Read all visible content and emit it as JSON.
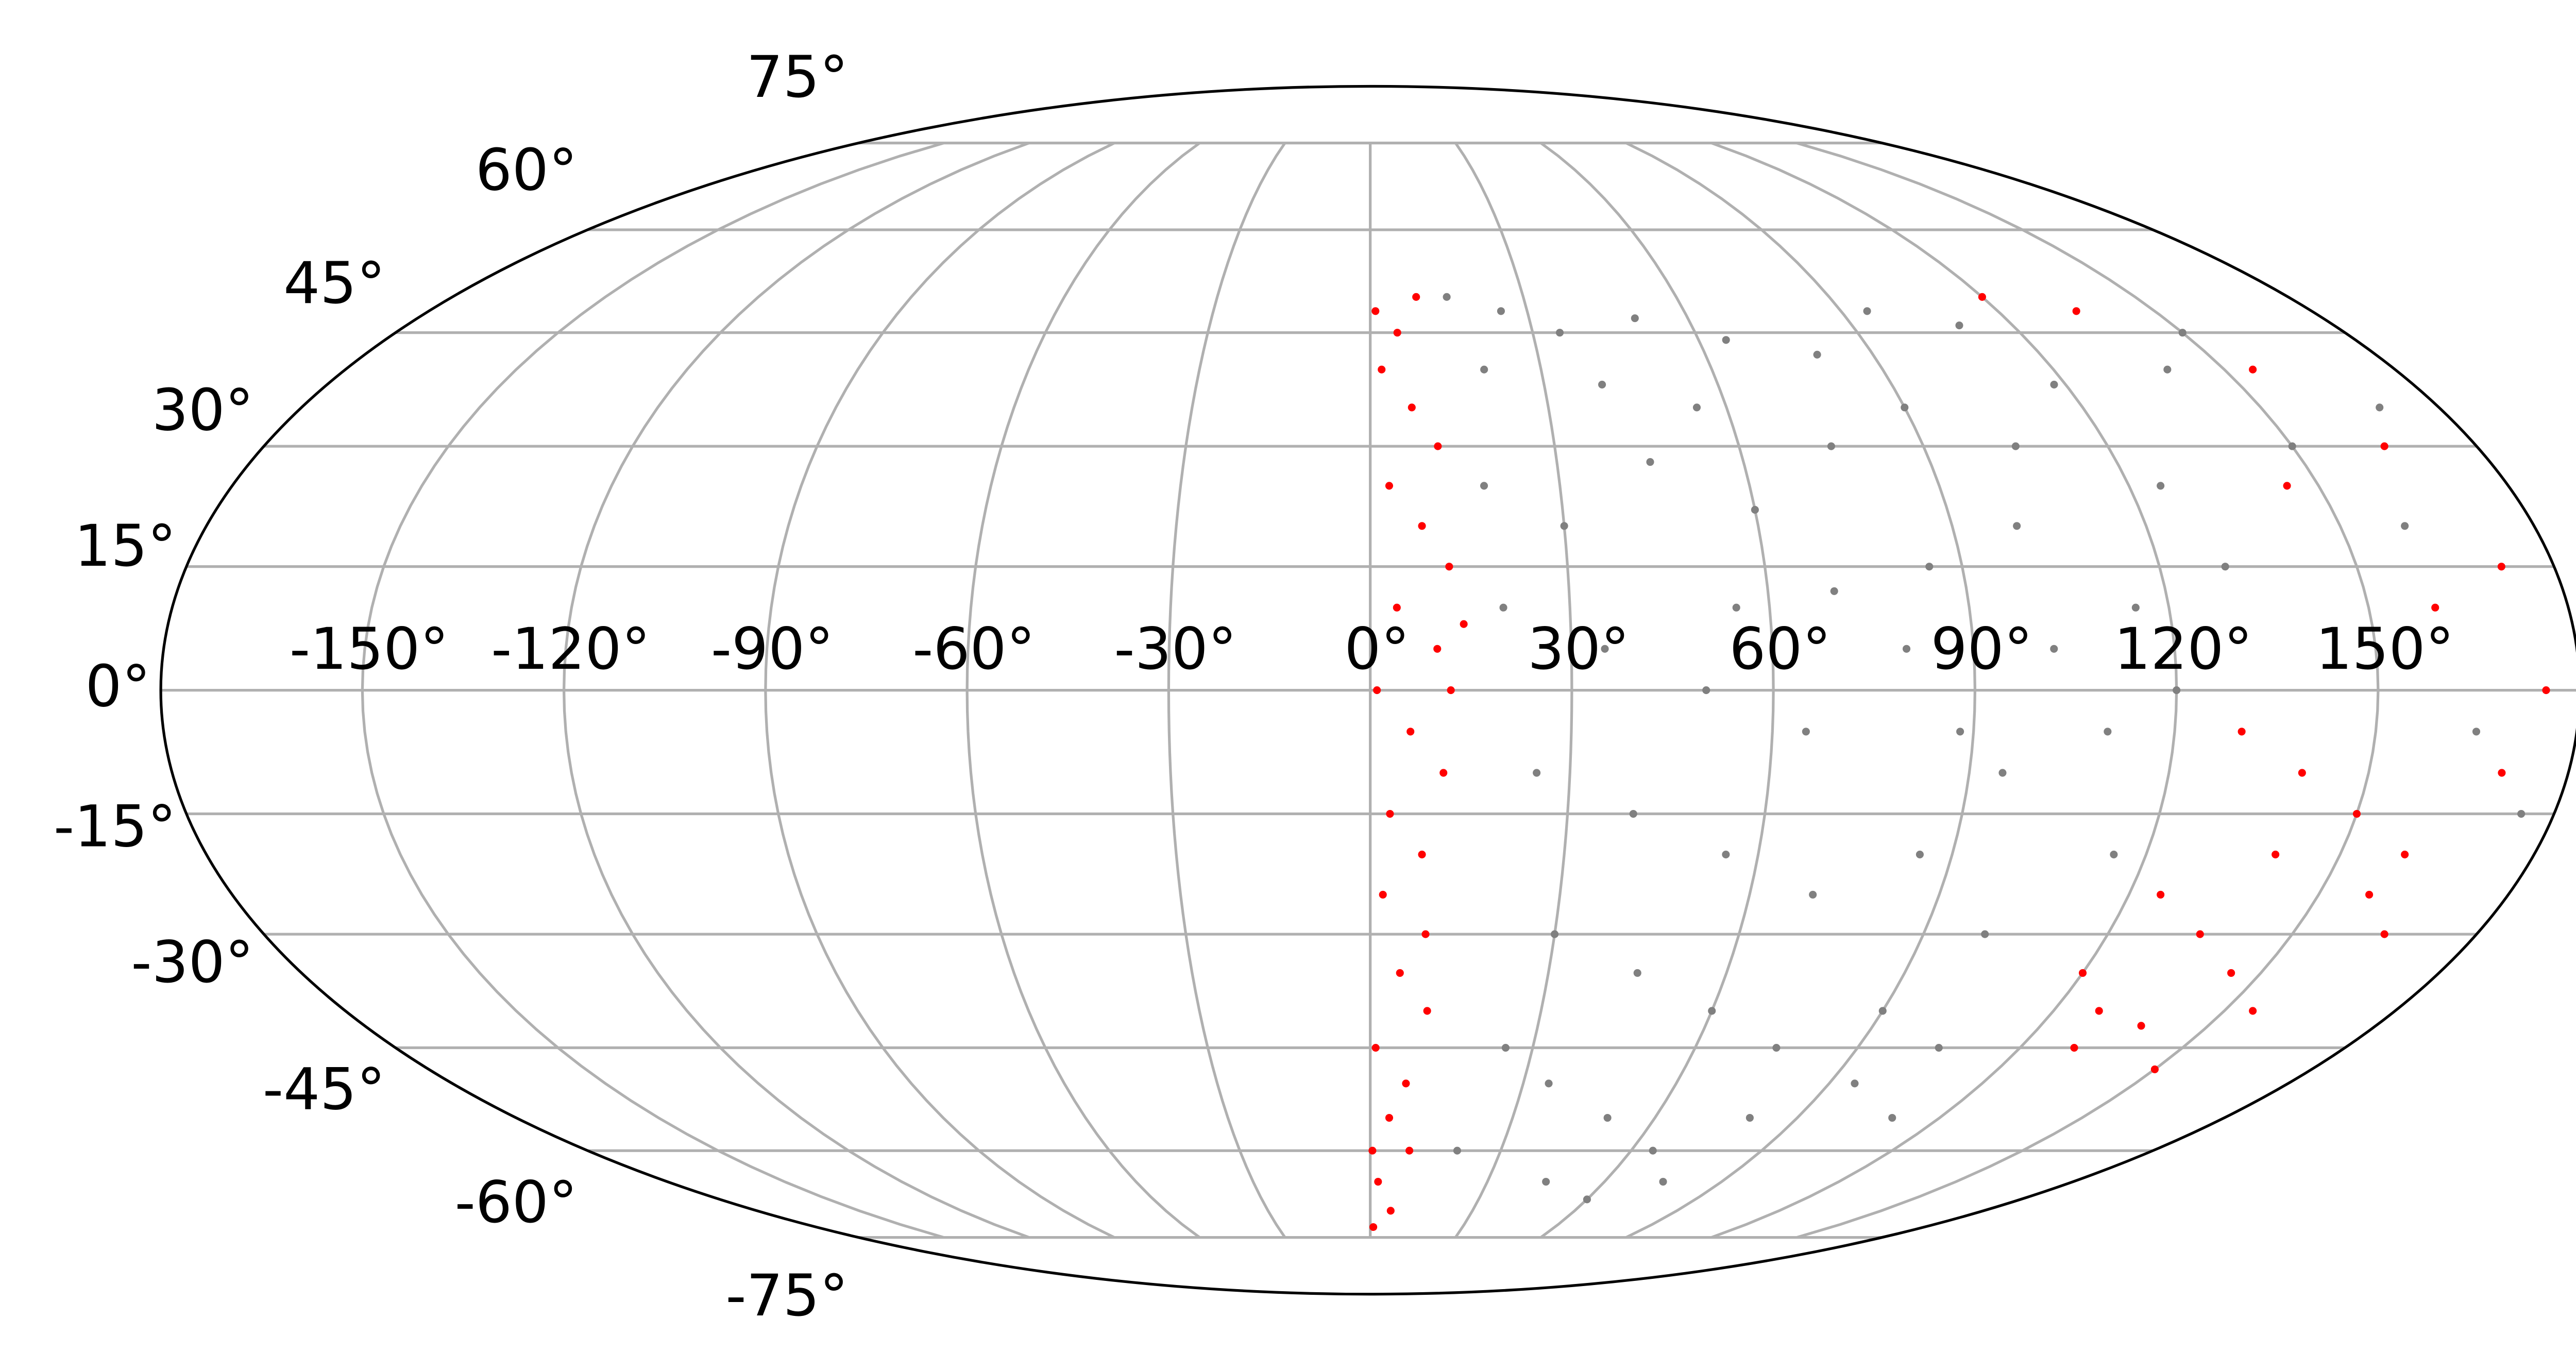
{
  "chart_data": {
    "type": "scatter",
    "projection": "mollweide",
    "grid": true,
    "xlim": [
      -180,
      180
    ],
    "ylim": [
      -90,
      90
    ],
    "xticks": [
      {
        "value": -150,
        "label": "-150°"
      },
      {
        "value": -120,
        "label": "-120°"
      },
      {
        "value": -90,
        "label": "-90°"
      },
      {
        "value": -60,
        "label": "-60°"
      },
      {
        "value": -30,
        "label": "-30°"
      },
      {
        "value": 0,
        "label": "0°"
      },
      {
        "value": 30,
        "label": "30°"
      },
      {
        "value": 60,
        "label": "60°"
      },
      {
        "value": 90,
        "label": "90°"
      },
      {
        "value": 120,
        "label": "120°"
      },
      {
        "value": 150,
        "label": "150°"
      }
    ],
    "yticks": [
      {
        "value": -75,
        "label": "-75°"
      },
      {
        "value": -60,
        "label": "-60°"
      },
      {
        "value": -45,
        "label": "-45°"
      },
      {
        "value": -30,
        "label": "-30°"
      },
      {
        "value": -15,
        "label": "-15°"
      },
      {
        "value": 0,
        "label": "0°"
      },
      {
        "value": 15,
        "label": "15°"
      },
      {
        "value": 30,
        "label": "30°"
      },
      {
        "value": 45,
        "label": "45°"
      },
      {
        "value": 60,
        "label": "60°"
      },
      {
        "value": 75,
        "label": "75°"
      }
    ],
    "series": [
      {
        "color": "#808080",
        "x": [
          15,
          25,
          35,
          50,
          65,
          80,
          95,
          110,
          20,
          40,
          55,
          75,
          90,
          105,
          118,
          18,
          30,
          45,
          60,
          85,
          100,
          115,
          125,
          20,
          35,
          50,
          65,
          80,
          95,
          110,
          120,
          25,
          40,
          55,
          70,
          85,
          100,
          115,
          30,
          45,
          60,
          75,
          90,
          105,
          35,
          50,
          65,
          80,
          95,
          45,
          60,
          75,
          140,
          150,
          160,
          170,
          165,
          175,
          130,
          150,
          25,
          20,
          110,
          55,
          70,
          88,
          102
        ],
        "values": [
          50,
          48,
          45,
          47,
          44,
          42,
          48,
          46,
          40,
          38,
          35,
          30,
          35,
          30,
          38,
          25,
          20,
          28,
          22,
          15,
          20,
          10,
          25,
          10,
          5,
          0,
          -5,
          5,
          -10,
          -5,
          0,
          -10,
          -15,
          -20,
          -25,
          -20,
          -30,
          -20,
          -30,
          -35,
          -40,
          -45,
          -40,
          -45,
          -50,
          -55,
          -60,
          -55,
          -50,
          -65,
          -68,
          -65,
          40,
          30,
          20,
          35,
          -5,
          -15,
          15,
          45,
          -45,
          -60,
          -55,
          10,
          12,
          -5,
          5
        ]
      },
      {
        "color": "#ff0000",
        "x": [
          1,
          5,
          9,
          2,
          7,
          11,
          3,
          8,
          12,
          4,
          10,
          1,
          6,
          11,
          3,
          8,
          2,
          9,
          5,
          10,
          1,
          7,
          4,
          9,
          2,
          6,
          1,
          12,
          14,
          0.5,
          130,
          140,
          150,
          160,
          125,
          135,
          145,
          155,
          165,
          170,
          120,
          130,
          150,
          140,
          175,
          172,
          165,
          155,
          135,
          120,
          145,
          160,
          128,
          138,
          158
        ],
        "values": [
          48,
          45,
          50,
          40,
          35,
          30,
          25,
          20,
          15,
          10,
          5,
          0,
          -5,
          -10,
          -15,
          -20,
          -25,
          -30,
          -35,
          -40,
          -45,
          -50,
          -55,
          -60,
          -65,
          -70,
          -73,
          0,
          8,
          -60,
          -5,
          -10,
          -15,
          -20,
          -25,
          -30,
          -35,
          -40,
          -30,
          -10,
          -35,
          -45,
          -48,
          -20,
          0,
          15,
          30,
          40,
          48,
          50,
          25,
          10,
          -40,
          -42,
          -25
        ]
      }
    ]
  }
}
